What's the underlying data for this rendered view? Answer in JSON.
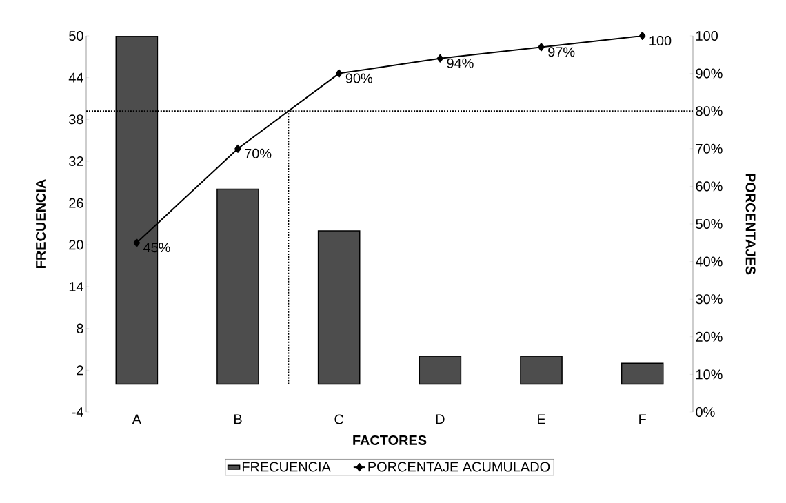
{
  "chart_data": {
    "type": "bar",
    "xlabel": "FACTORES",
    "ylabel": "FRECUENCIA",
    "y2label": "PORCENTAJES",
    "categories": [
      "A",
      "B",
      "C",
      "D",
      "E",
      "F"
    ],
    "series": [
      {
        "name": "FRECUENCIA",
        "color": "#4d4d4d",
        "values": [
          50,
          28,
          22,
          4,
          4,
          3
        ]
      },
      {
        "name": "PORCENTAJE ACUMULADO",
        "type": "line",
        "axis": "y2",
        "color": "#000000",
        "marker": "diamond",
        "values": [
          45,
          70,
          90,
          94,
          97,
          100
        ],
        "value_labels": [
          "45%",
          "70%",
          "90%",
          "94%",
          "97%",
          "100"
        ]
      }
    ],
    "ylim": [
      -4,
      50
    ],
    "yticks": [
      -4,
      2,
      8,
      14,
      20,
      26,
      32,
      38,
      44,
      50
    ],
    "y2lim": [
      0,
      100
    ],
    "y2ticks": [
      {
        "value": 0,
        "label": "0%"
      },
      {
        "value": 10,
        "label": "10%"
      },
      {
        "value": 20,
        "label": "20%"
      },
      {
        "value": 30,
        "label": "30%"
      },
      {
        "value": 40,
        "label": "40%"
      },
      {
        "value": 50,
        "label": "50%"
      },
      {
        "value": 60,
        "label": "60%"
      },
      {
        "value": 70,
        "label": "70%"
      },
      {
        "value": 80,
        "label": "80%"
      },
      {
        "value": 90,
        "label": "90%"
      },
      {
        "value": 100,
        "label": "100"
      }
    ],
    "ref_lines": [
      {
        "axis": "y2",
        "value": 80,
        "line_style": "dotted",
        "color": "#000000"
      }
    ],
    "grid": false,
    "legend": "bottom"
  }
}
